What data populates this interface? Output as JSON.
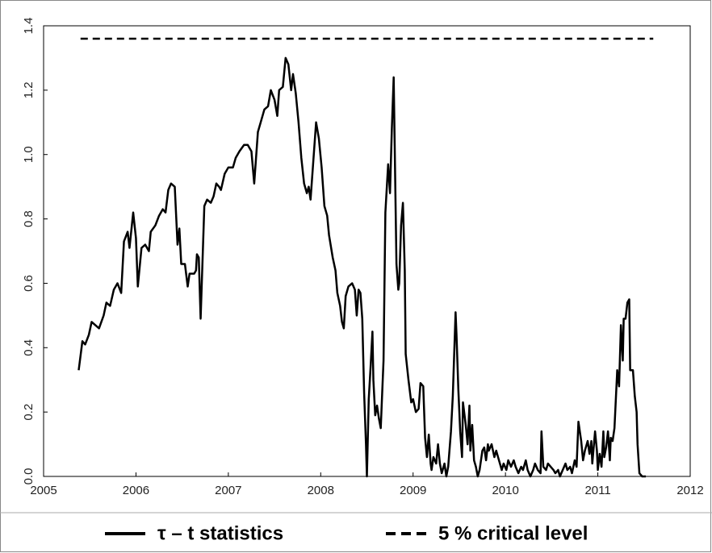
{
  "chart_data": {
    "type": "line",
    "xlim": [
      2005,
      2012
    ],
    "xticks": [
      2005,
      2006,
      2007,
      2008,
      2009,
      2010,
      2011,
      2012
    ],
    "ylim": [
      0,
      1.4
    ],
    "yticks": [
      {
        "value": 0,
        "label": "0.0"
      },
      0.2,
      0.4,
      0.6,
      0.8,
      {
        "value": 1,
        "label": "1.0"
      },
      1.2,
      1.4
    ],
    "grid": false,
    "legend": "bottom",
    "series": [
      {
        "name": "τ – t statistics",
        "color": "#000000",
        "dashed": false,
        "x": [
          2005.38,
          2005.42,
          2005.45,
          2005.49,
          2005.52,
          2005.56,
          2005.6,
          2005.65,
          2005.68,
          2005.72,
          2005.76,
          2005.8,
          2005.84,
          2005.87,
          2005.91,
          2005.93,
          2005.97,
          2006.0,
          2006.02,
          2006.06,
          2006.1,
          2006.14,
          2006.16,
          2006.21,
          2006.25,
          2006.29,
          2006.32,
          2006.35,
          2006.38,
          2006.42,
          2006.45,
          2006.47,
          2006.49,
          2006.53,
          2006.56,
          2006.58,
          2006.63,
          2006.65,
          2006.66,
          2006.68,
          2006.7,
          2006.74,
          2006.77,
          2006.81,
          2006.84,
          2006.87,
          2006.9,
          2006.92,
          2006.96,
          2007.0,
          2007.05,
          2007.08,
          2007.12,
          2007.17,
          2007.21,
          2007.25,
          2007.28,
          2007.32,
          2007.35,
          2007.39,
          2007.43,
          2007.46,
          2007.5,
          2007.53,
          2007.55,
          2007.59,
          2007.62,
          2007.65,
          2007.68,
          2007.7,
          2007.73,
          2007.76,
          2007.79,
          2007.82,
          2007.85,
          2007.87,
          2007.89,
          2007.92,
          2007.95,
          2007.98,
          2008.01,
          2008.04,
          2008.07,
          2008.09,
          2008.13,
          2008.16,
          2008.18,
          2008.21,
          2008.23,
          2008.25,
          2008.27,
          2008.3,
          2008.34,
          2008.37,
          2008.39,
          2008.41,
          2008.43,
          2008.45,
          2008.47,
          2008.49,
          2008.5,
          2008.52,
          2008.54,
          2008.56,
          2008.57,
          2008.59,
          2008.61,
          2008.63,
          2008.65,
          2008.68,
          2008.7,
          2008.73,
          2008.75,
          2008.77,
          2008.79,
          2008.82,
          2008.84,
          2008.85,
          2008.87,
          2008.89,
          2008.91,
          2008.92,
          2008.95,
          2008.98,
          2009.0,
          2009.03,
          2009.06,
          2009.08,
          2009.11,
          2009.13,
          2009.15,
          2009.17,
          2009.19,
          2009.2,
          2009.22,
          2009.25,
          2009.27,
          2009.29,
          2009.31,
          2009.34,
          2009.36,
          2009.38,
          2009.41,
          2009.43,
          2009.46,
          2009.47,
          2009.49,
          2009.51,
          2009.53,
          2009.54,
          2009.57,
          2009.59,
          2009.61,
          2009.62,
          2009.64,
          2009.66,
          2009.68,
          2009.7,
          2009.72,
          2009.75,
          2009.77,
          2009.79,
          2009.81,
          2009.82,
          2009.85,
          2009.88,
          2009.9,
          2009.93,
          2009.96,
          2009.98,
          2010.01,
          2010.03,
          2010.06,
          2010.09,
          2010.11,
          2010.14,
          2010.17,
          2010.19,
          2010.22,
          2010.24,
          2010.27,
          2010.3,
          2010.32,
          2010.35,
          2010.38,
          2010.39,
          2010.41,
          2010.44,
          2010.46,
          2010.49,
          2010.52,
          2010.54,
          2010.57,
          2010.59,
          2010.62,
          2010.65,
          2010.67,
          2010.7,
          2010.72,
          2010.75,
          2010.77,
          2010.79,
          2010.82,
          2010.84,
          2010.86,
          2010.89,
          2010.91,
          2010.93,
          2010.94,
          2010.97,
          2010.99,
          2011.0,
          2011.02,
          2011.04,
          2011.06,
          2011.07,
          2011.09,
          2011.11,
          2011.13,
          2011.14,
          2011.16,
          2011.18,
          2011.2,
          2011.21,
          2011.23,
          2011.25,
          2011.27,
          2011.28,
          2011.3,
          2011.32,
          2011.34,
          2011.35,
          2011.38,
          2011.4,
          2011.42,
          2011.43,
          2011.45,
          2011.48,
          2011.52
        ],
        "values": [
          0.33,
          0.42,
          0.41,
          0.44,
          0.48,
          0.47,
          0.46,
          0.5,
          0.54,
          0.53,
          0.58,
          0.6,
          0.57,
          0.73,
          0.76,
          0.71,
          0.82,
          0.74,
          0.59,
          0.71,
          0.72,
          0.7,
          0.76,
          0.78,
          0.81,
          0.83,
          0.82,
          0.89,
          0.91,
          0.9,
          0.72,
          0.77,
          0.66,
          0.66,
          0.59,
          0.63,
          0.63,
          0.64,
          0.69,
          0.68,
          0.49,
          0.84,
          0.86,
          0.85,
          0.87,
          0.91,
          0.9,
          0.89,
          0.94,
          0.96,
          0.96,
          0.99,
          1.01,
          1.03,
          1.03,
          1.01,
          0.91,
          1.07,
          1.1,
          1.14,
          1.15,
          1.2,
          1.17,
          1.12,
          1.2,
          1.21,
          1.3,
          1.28,
          1.2,
          1.25,
          1.19,
          1.1,
          0.99,
          0.91,
          0.88,
          0.9,
          0.86,
          0.98,
          1.1,
          1.05,
          0.96,
          0.84,
          0.81,
          0.75,
          0.68,
          0.64,
          0.57,
          0.53,
          0.48,
          0.46,
          0.56,
          0.59,
          0.6,
          0.58,
          0.5,
          0.58,
          0.57,
          0.49,
          0.26,
          0.1,
          0.0,
          0.24,
          0.34,
          0.45,
          0.3,
          0.19,
          0.22,
          0.18,
          0.15,
          0.36,
          0.82,
          0.97,
          0.88,
          1.08,
          1.24,
          0.66,
          0.58,
          0.6,
          0.78,
          0.85,
          0.64,
          0.38,
          0.3,
          0.23,
          0.24,
          0.2,
          0.21,
          0.29,
          0.28,
          0.12,
          0.06,
          0.13,
          0.04,
          0.02,
          0.06,
          0.04,
          0.1,
          0.04,
          0.01,
          0.04,
          0.0,
          0.03,
          0.14,
          0.25,
          0.51,
          0.44,
          0.27,
          0.14,
          0.06,
          0.23,
          0.16,
          0.1,
          0.22,
          0.08,
          0.16,
          0.05,
          0.03,
          0.0,
          0.02,
          0.08,
          0.09,
          0.05,
          0.1,
          0.08,
          0.1,
          0.06,
          0.08,
          0.05,
          0.02,
          0.04,
          0.02,
          0.05,
          0.03,
          0.05,
          0.03,
          0.01,
          0.03,
          0.02,
          0.05,
          0.02,
          0.0,
          0.02,
          0.04,
          0.02,
          0.01,
          0.14,
          0.03,
          0.02,
          0.04,
          0.03,
          0.02,
          0.01,
          0.02,
          0.0,
          0.02,
          0.04,
          0.02,
          0.03,
          0.01,
          0.05,
          0.03,
          0.17,
          0.11,
          0.05,
          0.08,
          0.11,
          0.07,
          0.11,
          0.04,
          0.14,
          0.08,
          0.02,
          0.07,
          0.03,
          0.14,
          0.06,
          0.09,
          0.14,
          0.05,
          0.12,
          0.11,
          0.15,
          0.27,
          0.33,
          0.28,
          0.47,
          0.36,
          0.49,
          0.49,
          0.54,
          0.55,
          0.33,
          0.33,
          0.25,
          0.2,
          0.1,
          0.01,
          0.0,
          0.0
        ]
      },
      {
        "name": "5 % critical level",
        "color": "#000000",
        "dashed": true,
        "x": [
          2005.4,
          2011.6
        ],
        "values": [
          1.36,
          1.36
        ]
      }
    ]
  }
}
